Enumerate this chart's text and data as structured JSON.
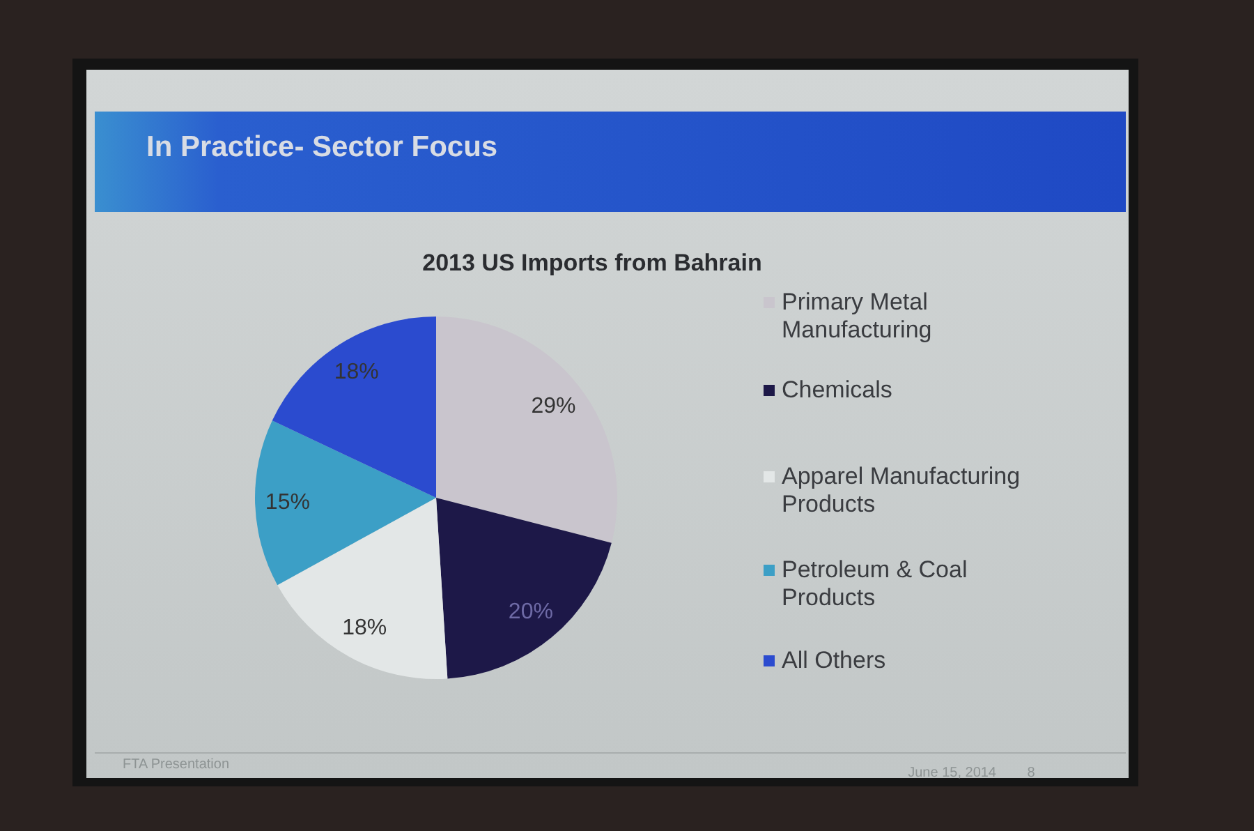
{
  "chart_data": {
    "type": "pie",
    "title": "In Practice- Sector Focus",
    "subtitle": "2013 US Imports from Bahrain",
    "categories": [
      "Primary Metal Manufacturing",
      "Chemicals",
      "Apparel Manufacturing Products",
      "Petroleum & Coal Products",
      "All Others"
    ],
    "values": [
      29,
      20,
      18,
      15,
      18
    ],
    "colors": [
      "#c9c5cd",
      "#1d1848",
      "#e3e7e7",
      "#3c9fc6",
      "#2b4bcf"
    ],
    "value_labels": [
      "29%",
      "20%",
      "18%",
      "15%",
      "18%"
    ],
    "legend": "right",
    "annotations": [
      "FTA Presentation",
      "June 15, 2014",
      "8"
    ]
  }
}
